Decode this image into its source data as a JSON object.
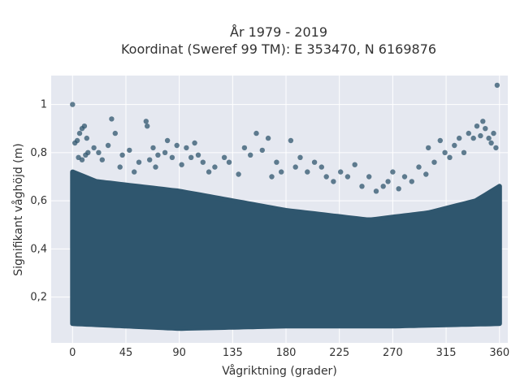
{
  "chart_data": {
    "type": "scatter",
    "title_lines": [
      "År 1979 - 2019",
      "Koordinat (Sweref 99 TM): E 353470, N 6169876"
    ],
    "xlabel": "Vågriktning (grader)",
    "ylabel": "Signifikant våghöjd (m)",
    "xlim": [
      -18,
      367
    ],
    "ylim": [
      0.01,
      1.12
    ],
    "x_ticks": [
      0,
      45,
      90,
      135,
      180,
      225,
      270,
      315,
      360
    ],
    "x_tick_labels": [
      "0",
      "45",
      "90",
      "135",
      "180",
      "225",
      "270",
      "315",
      "360"
    ],
    "y_ticks": [
      0.2,
      0.4,
      0.6,
      0.8,
      1.0
    ],
    "y_tick_labels": [
      "0,2",
      "0,4",
      "0,6",
      "0,8",
      "1"
    ],
    "grid": true,
    "marker_color": "#2f566e",
    "background_color": "#e5e8f0",
    "dense_band": {
      "x_range": [
        0,
        360
      ],
      "lower_bound": [
        [
          0,
          0.09
        ],
        [
          90,
          0.07
        ],
        [
          180,
          0.08
        ],
        [
          270,
          0.08
        ],
        [
          360,
          0.09
        ]
      ],
      "upper_bound": [
        [
          0,
          0.72
        ],
        [
          20,
          0.68
        ],
        [
          90,
          0.64
        ],
        [
          180,
          0.56
        ],
        [
          250,
          0.52
        ],
        [
          300,
          0.55
        ],
        [
          340,
          0.6
        ],
        [
          360,
          0.66
        ]
      ]
    },
    "outlier_points": [
      [
        0,
        1.0
      ],
      [
        2,
        0.84
      ],
      [
        4,
        0.85
      ],
      [
        6,
        0.88
      ],
      [
        8,
        0.9
      ],
      [
        10,
        0.91
      ],
      [
        12,
        0.86
      ],
      [
        13,
        0.8
      ],
      [
        5,
        0.78
      ],
      [
        8,
        0.77
      ],
      [
        11,
        0.79
      ],
      [
        18,
        0.82
      ],
      [
        22,
        0.8
      ],
      [
        25,
        0.77
      ],
      [
        30,
        0.83
      ],
      [
        33,
        0.94
      ],
      [
        36,
        0.88
      ],
      [
        40,
        0.74
      ],
      [
        42,
        0.79
      ],
      [
        48,
        0.81
      ],
      [
        52,
        0.72
      ],
      [
        56,
        0.76
      ],
      [
        62,
        0.93
      ],
      [
        63,
        0.91
      ],
      [
        65,
        0.77
      ],
      [
        68,
        0.82
      ],
      [
        70,
        0.74
      ],
      [
        72,
        0.79
      ],
      [
        78,
        0.8
      ],
      [
        80,
        0.85
      ],
      [
        84,
        0.78
      ],
      [
        88,
        0.83
      ],
      [
        92,
        0.75
      ],
      [
        96,
        0.82
      ],
      [
        100,
        0.78
      ],
      [
        103,
        0.84
      ],
      [
        106,
        0.79
      ],
      [
        110,
        0.76
      ],
      [
        115,
        0.72
      ],
      [
        120,
        0.74
      ],
      [
        128,
        0.78
      ],
      [
        132,
        0.76
      ],
      [
        140,
        0.71
      ],
      [
        145,
        0.82
      ],
      [
        150,
        0.79
      ],
      [
        155,
        0.88
      ],
      [
        160,
        0.81
      ],
      [
        165,
        0.86
      ],
      [
        168,
        0.7
      ],
      [
        172,
        0.76
      ],
      [
        176,
        0.72
      ],
      [
        184,
        0.85
      ],
      [
        188,
        0.74
      ],
      [
        192,
        0.78
      ],
      [
        198,
        0.72
      ],
      [
        204,
        0.76
      ],
      [
        210,
        0.74
      ],
      [
        214,
        0.7
      ],
      [
        220,
        0.68
      ],
      [
        226,
        0.72
      ],
      [
        232,
        0.7
      ],
      [
        238,
        0.75
      ],
      [
        244,
        0.66
      ],
      [
        250,
        0.7
      ],
      [
        256,
        0.64
      ],
      [
        262,
        0.66
      ],
      [
        266,
        0.68
      ],
      [
        270,
        0.72
      ],
      [
        275,
        0.65
      ],
      [
        280,
        0.7
      ],
      [
        286,
        0.68
      ],
      [
        292,
        0.74
      ],
      [
        298,
        0.71
      ],
      [
        300,
        0.82
      ],
      [
        305,
        0.76
      ],
      [
        310,
        0.85
      ],
      [
        314,
        0.8
      ],
      [
        318,
        0.78
      ],
      [
        322,
        0.83
      ],
      [
        326,
        0.86
      ],
      [
        330,
        0.8
      ],
      [
        334,
        0.88
      ],
      [
        338,
        0.86
      ],
      [
        341,
        0.91
      ],
      [
        344,
        0.87
      ],
      [
        346,
        0.93
      ],
      [
        348,
        0.9
      ],
      [
        351,
        0.86
      ],
      [
        353,
        0.84
      ],
      [
        355,
        0.88
      ],
      [
        357,
        0.82
      ],
      [
        358,
        1.08
      ]
    ]
  }
}
